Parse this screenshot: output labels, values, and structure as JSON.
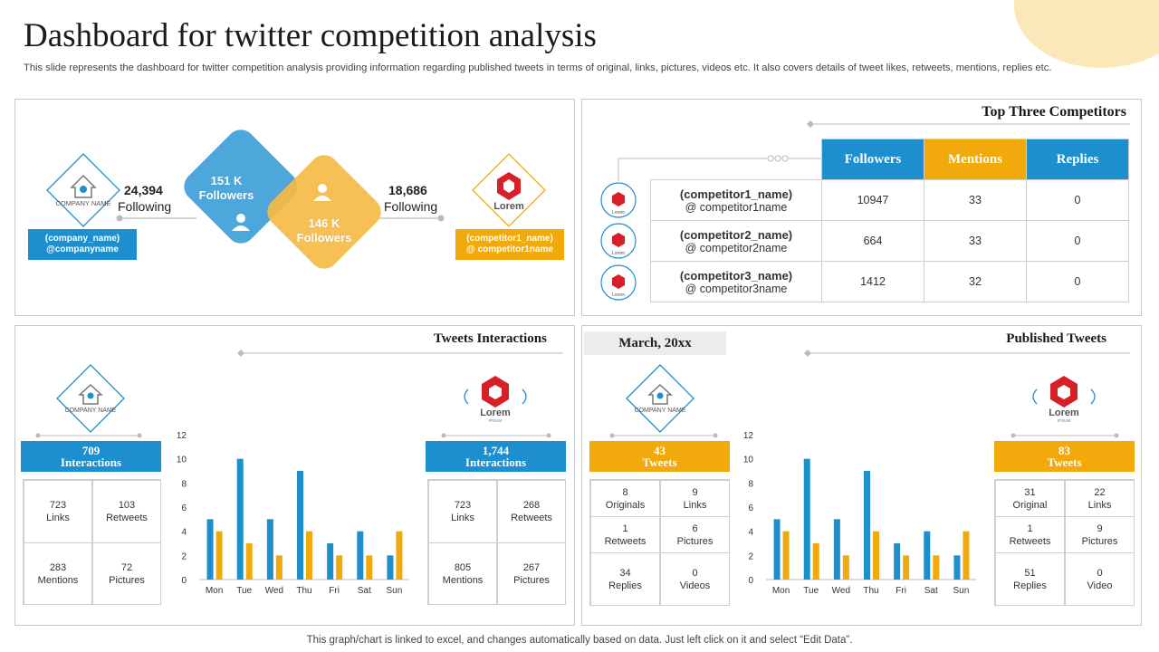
{
  "header": {
    "title": "Dashboard for twitter competition analysis",
    "subtitle": "This slide represents the dashboard for twitter competition analysis providing information regarding published tweets in terms of original, links, pictures, videos etc. It also covers details of tweet likes, retweets, mentions, replies etc."
  },
  "footer": "This graph/chart is linked to excel,  and changes automatically based on data. Just left click on it and select “Edit Data”.",
  "colors": {
    "blue": "#1d8fce",
    "orange": "#f2a90b",
    "diamond_blue": "#4ea7db",
    "diamond_orange": "#f5bb45"
  },
  "followers_panel": {
    "company": {
      "logo_text": "COMPANY NAME",
      "name": "(company_name)",
      "handle": "@companyname",
      "following_count": "24,394",
      "following_label": "Following",
      "followers": "151 K",
      "followers_label": "Followers"
    },
    "competitor": {
      "logo_text": "Lorem",
      "name": "(competitor1_name)",
      "handle": "@ competitor1name",
      "following_count": "18,686",
      "following_label": "Following",
      "followers": "146 K",
      "followers_label": "Followers"
    }
  },
  "competitors_panel": {
    "title": "Top Three Competitors",
    "columns": [
      "Followers",
      "Mentions",
      "Replies"
    ],
    "rows": [
      {
        "name": "(competitor1_name)",
        "handle": "@ competitor1name",
        "followers": "10947",
        "mentions": "33",
        "replies": "0"
      },
      {
        "name": "(competitor2_name)",
        "handle": "@ competitor2name",
        "followers": "664",
        "mentions": "33",
        "replies": "0"
      },
      {
        "name": "(competitor3_name)",
        "handle": "@ competitor3name",
        "followers": "1412",
        "mentions": "32",
        "replies": "0"
      }
    ],
    "logo_text": "Lorem"
  },
  "interactions_panel": {
    "title": "Tweets Interactions",
    "company": {
      "logo_text": "COMPANY NAME",
      "count": "709",
      "label": "Interactions",
      "stats": [
        {
          "value": "723",
          "label": "Links"
        },
        {
          "value": "103",
          "label": "Retweets"
        },
        {
          "value": "283",
          "label": "Mentions"
        },
        {
          "value": "72",
          "label": "Pictures"
        }
      ]
    },
    "competitor": {
      "logo_text": "Lorem",
      "logo_sub": "IPSUM",
      "count": "1,744",
      "label": "Interactions",
      "stats": [
        {
          "value": "723",
          "label": "Links"
        },
        {
          "value": "268",
          "label": "Retweets"
        },
        {
          "value": "805",
          "label": "Mentions"
        },
        {
          "value": "267",
          "label": "Pictures"
        }
      ]
    }
  },
  "published_panel": {
    "date": "March, 20xx",
    "title": "Published Tweets",
    "company": {
      "logo_text": "COMPANY NAME",
      "count": "43",
      "label": "Tweets",
      "stats": [
        {
          "value": "8",
          "label": "Originals"
        },
        {
          "value": "9",
          "label": "Links"
        },
        {
          "value": "1",
          "label": "Retweets"
        },
        {
          "value": "6",
          "label": "Pictures"
        },
        {
          "value": "34",
          "label": "Replies"
        },
        {
          "value": "0",
          "label": "Videos"
        }
      ]
    },
    "competitor": {
      "logo_text": "Lorem",
      "logo_sub": "IPSUM",
      "count": "83",
      "label": "Tweets",
      "stats": [
        {
          "value": "31",
          "label": "Original"
        },
        {
          "value": "22",
          "label": "Links"
        },
        {
          "value": "1",
          "label": "Retweets"
        },
        {
          "value": "9",
          "label": "Pictures"
        },
        {
          "value": "51",
          "label": "Replies"
        },
        {
          "value": "0",
          "label": "Video"
        }
      ]
    }
  },
  "chart_data": [
    {
      "type": "bar",
      "categories": [
        "Mon",
        "Tue",
        "Wed",
        "Thu",
        "Fri",
        "Sat",
        "Sun"
      ],
      "series": [
        {
          "values": [
            5,
            10,
            5,
            9,
            3,
            4,
            2
          ],
          "color": "#1d8fce"
        },
        {
          "values": [
            4,
            3,
            2,
            4,
            2,
            2,
            4
          ],
          "color": "#f2a90b"
        }
      ],
      "ylim": [
        0,
        12
      ],
      "yticks": [
        0,
        2,
        4,
        6,
        8,
        10,
        12
      ],
      "grid": false
    },
    {
      "type": "bar",
      "categories": [
        "Mon",
        "Tue",
        "Wed",
        "Thu",
        "Fri",
        "Sat",
        "Sun"
      ],
      "series": [
        {
          "values": [
            5,
            10,
            5,
            9,
            3,
            4,
            2
          ],
          "color": "#1d8fce"
        },
        {
          "values": [
            4,
            3,
            2,
            4,
            2,
            2,
            4
          ],
          "color": "#f2a90b"
        }
      ],
      "ylim": [
        0,
        12
      ],
      "yticks": [
        0,
        2,
        4,
        6,
        8,
        10,
        12
      ],
      "grid": false
    }
  ]
}
